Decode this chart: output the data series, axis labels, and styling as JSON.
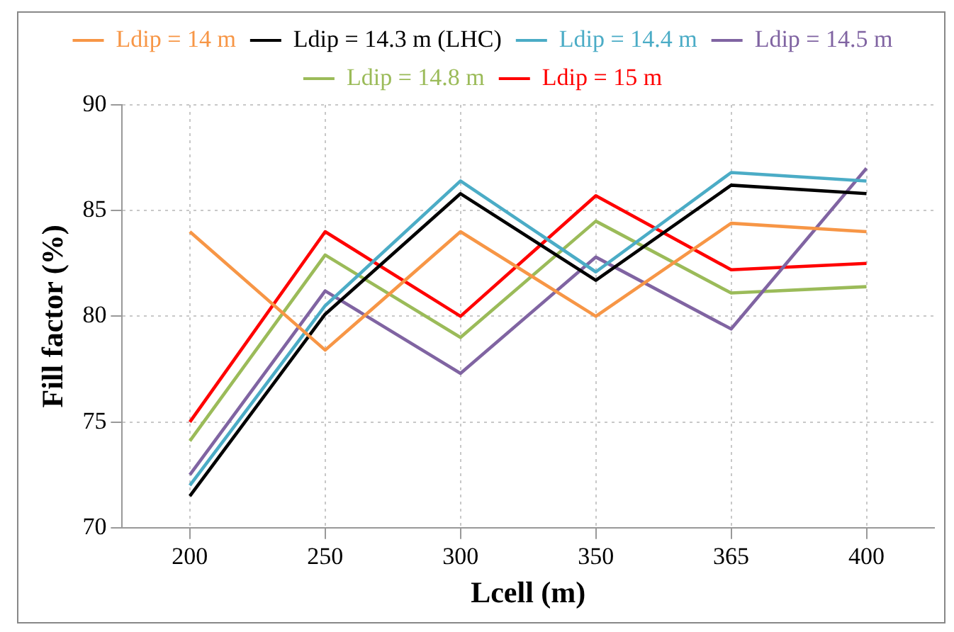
{
  "chart_data": {
    "type": "line",
    "xlabel": "Lcell (m)",
    "ylabel": "Fill factor (%)",
    "categories": [
      "200",
      "250",
      "300",
      "350",
      "365",
      "400"
    ],
    "series": [
      {
        "name": "Ldip = 14 m",
        "color": "#f79646",
        "values": [
          84,
          78.4,
          84,
          80,
          84.4,
          84
        ]
      },
      {
        "name": "Ldip = 14.3 m (LHC)",
        "color": "#000000",
        "values": [
          71.5,
          80.1,
          85.8,
          81.7,
          86.2,
          85.8
        ]
      },
      {
        "name": "Ldip = 14.4 m",
        "color": "#4bacc6",
        "values": [
          72,
          80.5,
          86.4,
          82.1,
          86.8,
          86.4
        ]
      },
      {
        "name": "Ldip = 14.5 m",
        "color": "#8064a2",
        "values": [
          72.5,
          81.2,
          77.3,
          82.8,
          79.4,
          87
        ]
      },
      {
        "name": "Ldip = 14.8 m",
        "color": "#9bbb59",
        "values": [
          74.1,
          82.9,
          79,
          84.5,
          81.1,
          81.4
        ]
      },
      {
        "name": "Ldip = 15 m",
        "color": "#ff0000",
        "values": [
          75,
          84,
          80,
          85.7,
          82.2,
          82.5
        ]
      }
    ],
    "ylim": [
      70,
      90
    ],
    "yticks": [
      70,
      75,
      80,
      85,
      90
    ],
    "grid": true,
    "legend": "top",
    "marker": "none",
    "line_style": "solid"
  }
}
